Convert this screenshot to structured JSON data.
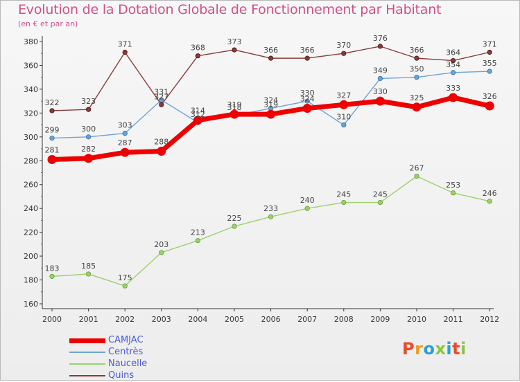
{
  "title": "Evolution de la Dotation Globale de Fonctionnement par Habitant",
  "subtitle": "(en € et par an)",
  "logo": {
    "text": "Proxiti",
    "colors": [
      "#e84c2a",
      "#f29a1a",
      "#2aa0d8",
      "#8bc53f",
      "#2aa0d8",
      "#e84c2a",
      "#8bc53f"
    ]
  },
  "colors": {
    "CAMJAC": "#ee0000",
    "Centrès": "#6ba3d6",
    "Naucelle": "#9cd16a",
    "Quins": "#8b3a3a"
  },
  "chart_data": {
    "type": "line",
    "title": "Evolution de la Dotation Globale de Fonctionnement par Habitant",
    "subtitle": "(en € et par an)",
    "x": [
      "2000",
      "2001",
      "2002",
      "2003",
      "2004",
      "2005",
      "2006",
      "2007",
      "2008",
      "2009",
      "2010",
      "2011",
      "2012"
    ],
    "ylim": [
      160,
      380
    ],
    "yticks": [
      160,
      180,
      200,
      220,
      240,
      260,
      280,
      300,
      320,
      340,
      360,
      380
    ],
    "grid": false,
    "legend": "bottom-left",
    "series": [
      {
        "name": "CAMJAC",
        "color": "#ee0000",
        "values": [
          281,
          282,
          287,
          288,
          314,
          319,
          319,
          324,
          327,
          330,
          325,
          333,
          326
        ]
      },
      {
        "name": "Centrès",
        "color": "#6ba3d6",
        "values": [
          299,
          300,
          303,
          331,
          312,
          318,
          324,
          330,
          310,
          349,
          350,
          354,
          355
        ]
      },
      {
        "name": "Naucelle",
        "color": "#9cd16a",
        "values": [
          183,
          185,
          175,
          203,
          213,
          225,
          233,
          240,
          245,
          245,
          267,
          253,
          246
        ]
      },
      {
        "name": "Quins",
        "color": "#8b3a3a",
        "values": [
          322,
          323,
          371,
          327,
          368,
          373,
          366,
          366,
          370,
          376,
          366,
          364,
          371
        ]
      }
    ]
  }
}
